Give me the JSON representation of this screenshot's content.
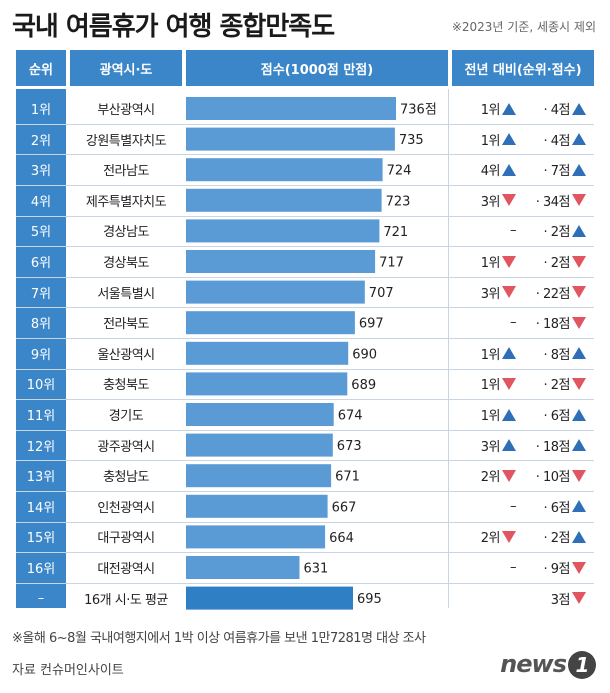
{
  "title": "국내 여름휴가 여행 종합만족도",
  "note_top": "※2023년 기준, 세종시 제외",
  "headers": {
    "rank": "순위",
    "region": "광역시·도",
    "score": "점수(1000점 만점)",
    "change": "전년 대비(순위·점수)"
  },
  "chart_data": {
    "type": "bar",
    "orientation": "horizontal",
    "xlim": [
      0,
      736
    ],
    "categories": [
      "부산광역시",
      "강원특별자치도",
      "전라남도",
      "제주특별자치도",
      "경상남도",
      "경상북도",
      "서울특별시",
      "전라북도",
      "울산광역시",
      "충청북도",
      "경기도",
      "광주광역시",
      "충청남도",
      "인천광역시",
      "대구광역시",
      "대전광역시",
      "16개 시·도 평균"
    ],
    "ranks": [
      "1위",
      "2위",
      "3위",
      "4위",
      "5위",
      "6위",
      "7위",
      "8위",
      "9위",
      "10위",
      "11위",
      "12위",
      "13위",
      "14위",
      "15위",
      "16위",
      "–"
    ],
    "values": [
      736,
      735,
      724,
      723,
      721,
      717,
      707,
      697,
      690,
      689,
      674,
      673,
      671,
      667,
      664,
      631,
      695
    ],
    "value_labels": [
      "736점",
      "735",
      "724",
      "723",
      "721",
      "717",
      "707",
      "697",
      "690",
      "689",
      "674",
      "673",
      "671",
      "667",
      "664",
      "631",
      "695"
    ],
    "rank_change": [
      {
        "text": "1위",
        "dir": "up"
      },
      {
        "text": "1위",
        "dir": "up"
      },
      {
        "text": "4위",
        "dir": "up"
      },
      {
        "text": "3위",
        "dir": "down"
      },
      {
        "text": "–",
        "dir": ""
      },
      {
        "text": "1위",
        "dir": "down"
      },
      {
        "text": "3위",
        "dir": "down"
      },
      {
        "text": "–",
        "dir": ""
      },
      {
        "text": "1위",
        "dir": "up"
      },
      {
        "text": "1위",
        "dir": "down"
      },
      {
        "text": "1위",
        "dir": "up"
      },
      {
        "text": "3위",
        "dir": "up"
      },
      {
        "text": "2위",
        "dir": "down"
      },
      {
        "text": "–",
        "dir": ""
      },
      {
        "text": "2위",
        "dir": "down"
      },
      {
        "text": "–",
        "dir": ""
      },
      {
        "text": "",
        "dir": ""
      }
    ],
    "score_change": [
      {
        "text": "· 4점",
        "dir": "up"
      },
      {
        "text": "· 4점",
        "dir": "up"
      },
      {
        "text": "· 7점",
        "dir": "up"
      },
      {
        "text": "· 34점",
        "dir": "down"
      },
      {
        "text": "· 2점",
        "dir": "up"
      },
      {
        "text": "· 2점",
        "dir": "down"
      },
      {
        "text": "· 22점",
        "dir": "down"
      },
      {
        "text": "· 18점",
        "dir": "down"
      },
      {
        "text": "· 8점",
        "dir": "up"
      },
      {
        "text": "· 2점",
        "dir": "down"
      },
      {
        "text": "· 6점",
        "dir": "up"
      },
      {
        "text": "· 18점",
        "dir": "up"
      },
      {
        "text": "· 10점",
        "dir": "down"
      },
      {
        "text": "· 6점",
        "dir": "up"
      },
      {
        "text": "· 2점",
        "dir": "up"
      },
      {
        "text": "· 9점",
        "dir": "down"
      },
      {
        "text": "3점",
        "dir": "down"
      }
    ],
    "colors": {
      "bar": "#5b9bd5",
      "average_bar": "#2f7fc4",
      "up": "#2f6fb8",
      "down": "#e05560",
      "header": "#3b86c9"
    }
  },
  "footnote": "※올해 6~8월 국내여행지에서 1박 이상 여름휴가를 보낸 1만7281명 대상 조사",
  "source": "자료 컨슈머인사이트",
  "logo": {
    "text": "news",
    "badge": "1"
  }
}
